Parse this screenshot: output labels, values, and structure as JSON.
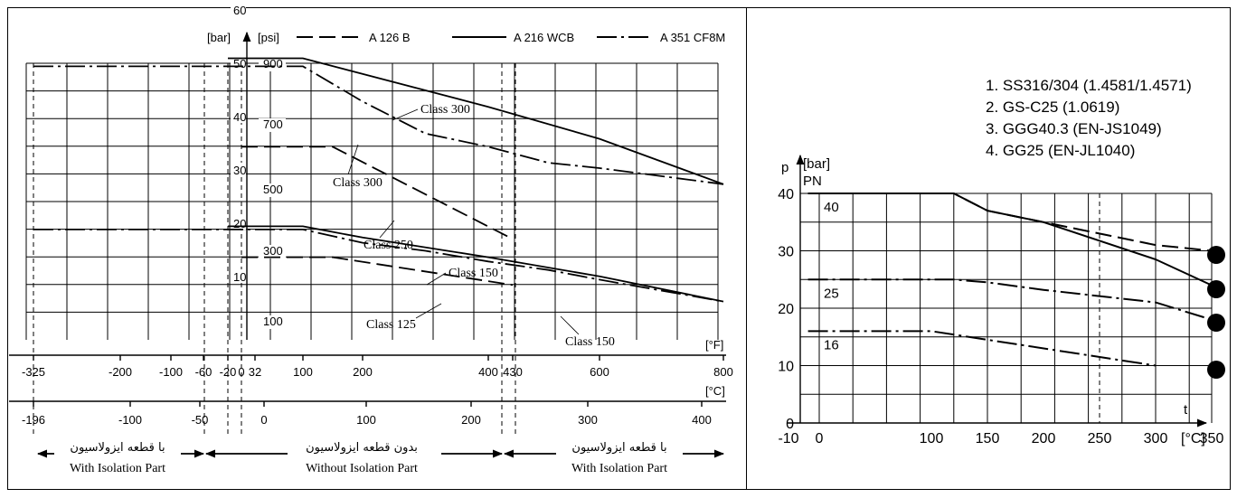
{
  "chart_data": [
    {
      "type": "line",
      "header": {
        "bar_unit": "[bar]",
        "psi_unit": "[psi]",
        "legend": [
          {
            "name": "A 126 B",
            "style": "dashed"
          },
          {
            "name": "A 216 WCB",
            "style": "solid"
          },
          {
            "name": "A 351 CF8M",
            "style": "dash-dot"
          }
        ]
      },
      "bar_ticks": [
        "60",
        "50",
        "40",
        "30",
        "20",
        "10"
      ],
      "psi_ticks": [
        "900",
        "700",
        "500",
        "300",
        "100"
      ],
      "f_unit": "[°F]",
      "f_ticks": [
        "-325",
        "-200",
        "-100",
        "-60",
        "-20",
        "0",
        "32",
        "100",
        "200",
        "400",
        "430",
        "600",
        "800"
      ],
      "c_unit": "[°C]",
      "c_ticks": [
        "-196",
        "-100",
        "-50",
        "0",
        "100",
        "200",
        "300",
        "400"
      ],
      "ylim_bar": [
        0,
        65
      ],
      "xlim_f": [
        -370,
        800
      ],
      "series": [
        {
          "name": "A 216 WCB",
          "label": "Class 300",
          "style": "solid",
          "x": [
            -20,
            100,
            400,
            600,
            800
          ],
          "y": [
            51.1,
            51.1,
            42,
            36,
            27.5
          ]
        },
        {
          "name": "A 351 CF8M",
          "label": "Class 300",
          "style": "dashdot",
          "x": [
            -325,
            -20,
            100,
            200,
            300,
            400,
            500,
            600,
            800
          ],
          "y": [
            49.6,
            49.6,
            49.6,
            43,
            37,
            34.5,
            31.5,
            30.5,
            27.5
          ]
        },
        {
          "name": "A 126 B",
          "label": "Class 250",
          "style": "dashed",
          "x": [
            0,
            150,
            430
          ],
          "y": [
            34.5,
            34.5,
            17.2
          ]
        },
        {
          "name": "A 216 WCB",
          "label": "Class 150",
          "style": "solid",
          "x": [
            -20,
            100,
            200,
            400,
            600,
            800
          ],
          "y": [
            19.6,
            19.6,
            17.5,
            13.8,
            10.2,
            5.5
          ]
        },
        {
          "name": "A 351 CF8M",
          "label": "Class 150",
          "style": "dashdot",
          "x": [
            -325,
            -20,
            100,
            200,
            300,
            400,
            500,
            600,
            800
          ],
          "y": [
            19,
            19,
            19,
            16.5,
            15,
            13,
            11.4,
            9.6,
            5.5
          ]
        },
        {
          "name": "A 126 B",
          "label": "Class 125",
          "style": "dashed",
          "x": [
            0,
            150,
            430
          ],
          "y": [
            13.8,
            13.8,
            8.6
          ]
        }
      ],
      "zones": [
        {
          "fa": "با قطعه ایزولاسیون",
          "en": "With Isolation Part"
        },
        {
          "fa": "بدون قطعه ایزولاسیون",
          "en": "Without Isolation Part"
        },
        {
          "fa": "با قطعه ایزولاسیون",
          "en": "With Isolation Part"
        }
      ]
    },
    {
      "type": "line",
      "materials": [
        "1. SS316/304 (1.4581/1.4571)",
        "2. GS-C25 (1.0619)",
        "3. GGG40.3 (EN-JS1049)",
        "4. GG25 (EN-JL1040)"
      ],
      "ylabel_p": "p",
      "ylabel_unit": "[bar]",
      "ylabel_pn": "PN",
      "xlabel_t": "t",
      "x_unit": "[°C]",
      "xlim": [
        -10,
        350
      ],
      "ylim": [
        0,
        40
      ],
      "x_ticks": [
        "-10",
        "0",
        "100",
        "150",
        "200",
        "250",
        "300",
        "350"
      ],
      "y_ticks": [
        "0",
        "10",
        "20",
        "30",
        "40"
      ],
      "pn_labels": [
        "40",
        "25",
        "16"
      ],
      "series": [
        {
          "name": "1",
          "style": "dashed",
          "x": [
            -10,
            120,
            150,
            200,
            300,
            350
          ],
          "y": [
            40,
            40,
            37,
            35,
            31,
            30
          ]
        },
        {
          "name": "2",
          "style": "solid",
          "x": [
            -10,
            120,
            150,
            200,
            300,
            350
          ],
          "y": [
            40,
            40,
            37,
            35,
            28.5,
            24
          ]
        },
        {
          "name": "3",
          "style": "dashdot",
          "x": [
            -10,
            120,
            150,
            200,
            300,
            350
          ],
          "y": [
            25,
            25,
            24.5,
            23.2,
            21,
            18
          ]
        },
        {
          "name": "4",
          "style": "dashdot",
          "x": [
            -10,
            100,
            300
          ],
          "y": [
            16,
            16,
            10
          ]
        }
      ]
    }
  ]
}
